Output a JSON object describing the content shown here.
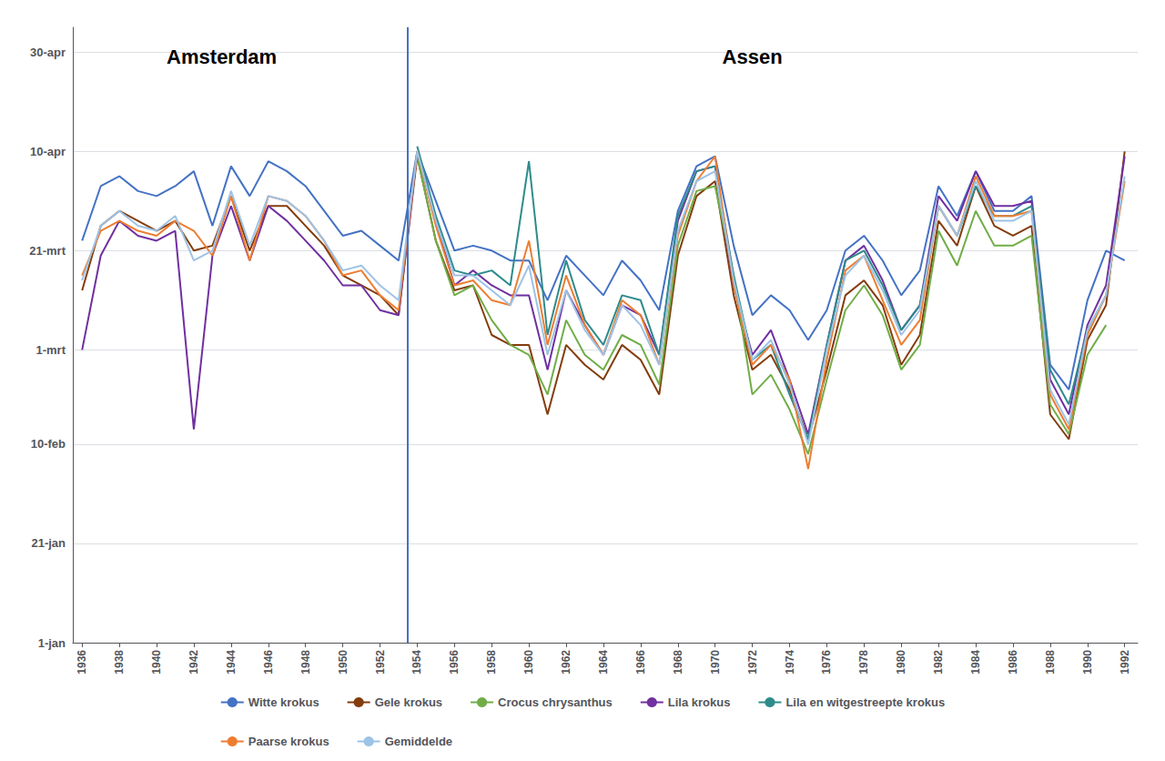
{
  "chart_data": {
    "type": "line",
    "x": [
      1936,
      1937,
      1938,
      1939,
      1940,
      1941,
      1942,
      1943,
      1944,
      1945,
      1946,
      1947,
      1948,
      1949,
      1950,
      1951,
      1952,
      1953,
      1954,
      1955,
      1956,
      1957,
      1958,
      1959,
      1960,
      1961,
      1962,
      1963,
      1964,
      1965,
      1966,
      1967,
      1968,
      1969,
      1970,
      1971,
      1972,
      1973,
      1974,
      1975,
      1976,
      1977,
      1978,
      1979,
      1980,
      1981,
      1982,
      1983,
      1984,
      1985,
      1986,
      1987,
      1988,
      1989,
      1990,
      1991,
      1992
    ],
    "series": [
      {
        "name": "Witte krokus",
        "color": "#4472C4",
        "values": [
          82,
          93,
          95,
          92,
          91,
          93,
          96,
          85,
          97,
          91,
          98,
          96,
          93,
          88,
          83,
          84,
          81,
          78,
          100,
          90,
          80,
          81,
          80,
          78,
          78,
          70,
          79,
          75,
          71,
          78,
          74,
          68,
          88,
          97,
          99,
          81,
          67,
          71,
          68,
          62,
          68,
          80,
          83,
          78,
          71,
          76,
          93,
          87,
          96,
          88,
          88,
          91,
          57,
          52,
          70,
          80,
          78
        ]
      },
      {
        "name": "Gele krokus",
        "color": "#843C0C",
        "values": [
          72,
          85,
          88,
          86,
          84,
          86,
          80,
          81,
          91,
          80,
          89,
          89,
          85,
          81,
          75,
          73,
          71,
          67,
          99,
          82,
          72,
          73,
          63,
          61,
          61,
          47,
          61,
          57,
          54,
          61,
          58,
          51,
          79,
          91,
          94,
          71,
          56,
          59,
          52,
          42,
          56,
          71,
          74,
          69,
          57,
          63,
          86,
          81,
          93,
          85,
          83,
          85,
          47,
          42,
          62,
          69,
          100
        ]
      },
      {
        "name": "Crocus chrysanthus",
        "color": "#70AD47",
        "values": [
          null,
          null,
          null,
          null,
          null,
          null,
          null,
          null,
          null,
          null,
          null,
          null,
          null,
          null,
          null,
          null,
          null,
          null,
          99,
          82,
          71,
          73,
          66,
          61,
          59,
          51,
          66,
          59,
          56,
          63,
          61,
          53,
          81,
          92,
          93,
          75,
          51,
          55,
          48,
          39,
          54,
          68,
          73,
          67,
          56,
          61,
          84,
          77,
          88,
          81,
          81,
          83,
          49,
          43,
          59,
          65,
          null
        ]
      },
      {
        "name": "Lila krokus",
        "color": "#7030A0",
        "values": [
          60,
          79,
          86,
          83,
          82,
          84,
          44,
          79,
          89,
          78,
          89,
          86,
          82,
          78,
          73,
          73,
          68,
          67,
          100,
          86,
          73,
          76,
          73,
          71,
          71,
          56,
          72,
          65,
          59,
          69,
          67,
          59,
          86,
          96,
          97,
          73,
          59,
          64,
          54,
          43,
          61,
          78,
          81,
          74,
          64,
          69,
          91,
          86,
          96,
          89,
          89,
          90,
          54,
          47,
          65,
          73,
          99
        ]
      },
      {
        "name": "Lila en witgestreepte krokus",
        "color": "#2E8B8B",
        "values": [
          null,
          null,
          null,
          null,
          null,
          null,
          null,
          null,
          null,
          null,
          null,
          null,
          null,
          null,
          null,
          null,
          null,
          null,
          101,
          87,
          76,
          75,
          76,
          73,
          98,
          63,
          78,
          66,
          61,
          71,
          70,
          59,
          87,
          96,
          97,
          75,
          58,
          61,
          51,
          42,
          61,
          78,
          80,
          73,
          64,
          69,
          89,
          83,
          93,
          87,
          87,
          89,
          56,
          49,
          64,
          71,
          null
        ]
      },
      {
        "name": "Paarse krokus",
        "color": "#ED7D31",
        "values": [
          75,
          84,
          86,
          84,
          83,
          86,
          84,
          79,
          91,
          78,
          91,
          90,
          87,
          82,
          75,
          76,
          71,
          68,
          100,
          85,
          73,
          74,
          70,
          69,
          82,
          61,
          75,
          65,
          59,
          70,
          67,
          57,
          83,
          94,
          99,
          73,
          57,
          61,
          54,
          36,
          58,
          76,
          79,
          70,
          61,
          66,
          89,
          83,
          95,
          87,
          87,
          88,
          51,
          44,
          63,
          71,
          94
        ]
      },
      {
        "name": "Gemiddelde",
        "color": "#9DC3E6",
        "values": [
          74,
          85,
          88,
          85,
          84,
          87,
          78,
          80,
          92,
          81,
          91,
          90,
          87,
          82,
          76,
          77,
          73,
          70,
          100,
          86,
          75,
          75,
          72,
          69,
          77,
          59,
          72,
          64,
          59,
          69,
          65,
          57,
          84,
          94,
          96,
          74,
          58,
          62,
          53,
          41,
          60,
          75,
          79,
          72,
          63,
          68,
          89,
          83,
          94,
          86,
          86,
          88,
          52,
          45,
          64,
          71,
          95
        ]
      }
    ],
    "xlim": [
      1935.5,
      1992.7
    ],
    "xticks": [
      1936,
      1938,
      1940,
      1942,
      1944,
      1946,
      1948,
      1950,
      1952,
      1954,
      1956,
      1958,
      1960,
      1962,
      1964,
      1966,
      1968,
      1970,
      1972,
      1974,
      1976,
      1978,
      1980,
      1982,
      1984,
      1986,
      1988,
      1990,
      1992
    ],
    "ylim": [
      1,
      125
    ],
    "yticks": [
      {
        "value": 1,
        "label": "1-jan"
      },
      {
        "value": 21,
        "label": "21-jan"
      },
      {
        "value": 41,
        "label": "10-feb"
      },
      {
        "value": 60,
        "label": "1-mrt"
      },
      {
        "value": 80,
        "label": "21-mrt"
      },
      {
        "value": 100,
        "label": "10-apr"
      },
      {
        "value": 120,
        "label": "30-apr"
      }
    ],
    "grid": "y",
    "legend": "bottom",
    "annotations": [
      {
        "text": "Amsterdam",
        "x": 1943.5,
        "y": 119
      },
      {
        "text": "Assen",
        "x": 1972,
        "y": 119
      }
    ],
    "vlines": [
      {
        "x": 1953.5,
        "color": "#4472C4"
      }
    ]
  }
}
